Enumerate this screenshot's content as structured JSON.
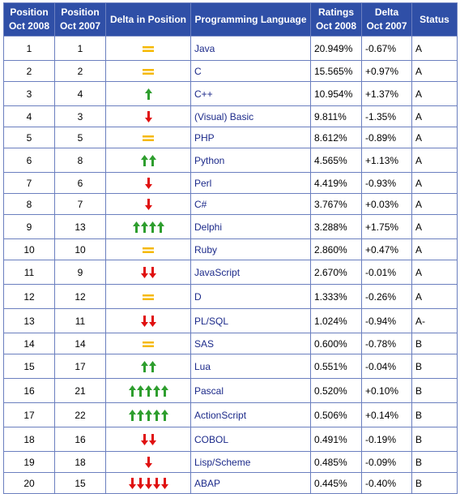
{
  "table": {
    "headers": {
      "pos2008": [
        "Position",
        "Oct 2008"
      ],
      "pos2007": [
        "Position",
        "Oct 2007"
      ],
      "delta_pos": "Delta in Position",
      "language": "Programming Language",
      "ratings": [
        "Ratings",
        "Oct 2008"
      ],
      "delta": [
        "Delta",
        "Oct 2007"
      ],
      "status": "Status"
    },
    "rows": [
      {
        "pos2008": "1",
        "pos2007": "1",
        "change": {
          "dir": "same",
          "count": 1
        },
        "language": "Java",
        "rating": "20.949%",
        "delta": "-0.67%",
        "status": "A"
      },
      {
        "pos2008": "2",
        "pos2007": "2",
        "change": {
          "dir": "same",
          "count": 1
        },
        "language": "C",
        "rating": "15.565%",
        "delta": "+0.97%",
        "status": "A"
      },
      {
        "pos2008": "3",
        "pos2007": "4",
        "change": {
          "dir": "up",
          "count": 1
        },
        "language": "C++",
        "rating": "10.954%",
        "delta": "+1.37%",
        "status": "A"
      },
      {
        "pos2008": "4",
        "pos2007": "3",
        "change": {
          "dir": "down",
          "count": 1
        },
        "language": "(Visual) Basic",
        "rating": "9.811%",
        "delta": "-1.35%",
        "status": "A"
      },
      {
        "pos2008": "5",
        "pos2007": "5",
        "change": {
          "dir": "same",
          "count": 1
        },
        "language": "PHP",
        "rating": "8.612%",
        "delta": "-0.89%",
        "status": "A"
      },
      {
        "pos2008": "6",
        "pos2007": "8",
        "change": {
          "dir": "up",
          "count": 2
        },
        "language": "Python",
        "rating": "4.565%",
        "delta": "+1.13%",
        "status": "A"
      },
      {
        "pos2008": "7",
        "pos2007": "6",
        "change": {
          "dir": "down",
          "count": 1
        },
        "language": "Perl",
        "rating": "4.419%",
        "delta": "-0.93%",
        "status": "A"
      },
      {
        "pos2008": "8",
        "pos2007": "7",
        "change": {
          "dir": "down",
          "count": 1
        },
        "language": "C#",
        "rating": "3.767%",
        "delta": "+0.03%",
        "status": "A"
      },
      {
        "pos2008": "9",
        "pos2007": "13",
        "change": {
          "dir": "up",
          "count": 4
        },
        "language": "Delphi",
        "rating": "3.288%",
        "delta": "+1.75%",
        "status": "A"
      },
      {
        "pos2008": "10",
        "pos2007": "10",
        "change": {
          "dir": "same",
          "count": 1
        },
        "language": "Ruby",
        "rating": "2.860%",
        "delta": "+0.47%",
        "status": "A"
      },
      {
        "pos2008": "11",
        "pos2007": "9",
        "change": {
          "dir": "down",
          "count": 2
        },
        "language": "JavaScript",
        "rating": "2.670%",
        "delta": "-0.01%",
        "status": "A"
      },
      {
        "pos2008": "12",
        "pos2007": "12",
        "change": {
          "dir": "same",
          "count": 1
        },
        "language": "D",
        "rating": "1.333%",
        "delta": "-0.26%",
        "status": "A"
      },
      {
        "pos2008": "13",
        "pos2007": "11",
        "change": {
          "dir": "down",
          "count": 2
        },
        "language": "PL/SQL",
        "rating": "1.024%",
        "delta": "-0.94%",
        "status": "A-"
      },
      {
        "pos2008": "14",
        "pos2007": "14",
        "change": {
          "dir": "same",
          "count": 1
        },
        "language": "SAS",
        "rating": "0.600%",
        "delta": "-0.78%",
        "status": "B"
      },
      {
        "pos2008": "15",
        "pos2007": "17",
        "change": {
          "dir": "up",
          "count": 2
        },
        "language": "Lua",
        "rating": "0.551%",
        "delta": "-0.04%",
        "status": "B"
      },
      {
        "pos2008": "16",
        "pos2007": "21",
        "change": {
          "dir": "up",
          "count": 5
        },
        "language": "Pascal",
        "rating": "0.520%",
        "delta": "+0.10%",
        "status": "B"
      },
      {
        "pos2008": "17",
        "pos2007": "22",
        "change": {
          "dir": "up",
          "count": 5
        },
        "language": "ActionScript",
        "rating": "0.506%",
        "delta": "+0.14%",
        "status": "B"
      },
      {
        "pos2008": "18",
        "pos2007": "16",
        "change": {
          "dir": "down",
          "count": 2
        },
        "language": "COBOL",
        "rating": "0.491%",
        "delta": "-0.19%",
        "status": "B"
      },
      {
        "pos2008": "19",
        "pos2007": "18",
        "change": {
          "dir": "down",
          "count": 1
        },
        "language": "Lisp/Scheme",
        "rating": "0.485%",
        "delta": "-0.09%",
        "status": "B"
      },
      {
        "pos2008": "20",
        "pos2007": "15",
        "change": {
          "dir": "down",
          "count": 5
        },
        "language": "ABAP",
        "rating": "0.445%",
        "delta": "-0.40%",
        "status": "B"
      }
    ]
  },
  "colors": {
    "header_bg": "#2f4fa7",
    "border": "#6b7fbf",
    "link": "#1c2a8a",
    "arrow_up": "#2e9e2e",
    "arrow_down": "#e01010",
    "equal": "#f5b800"
  },
  "icons": {
    "up": "arrow-up-icon",
    "down": "arrow-down-icon",
    "same": "equals-icon"
  }
}
